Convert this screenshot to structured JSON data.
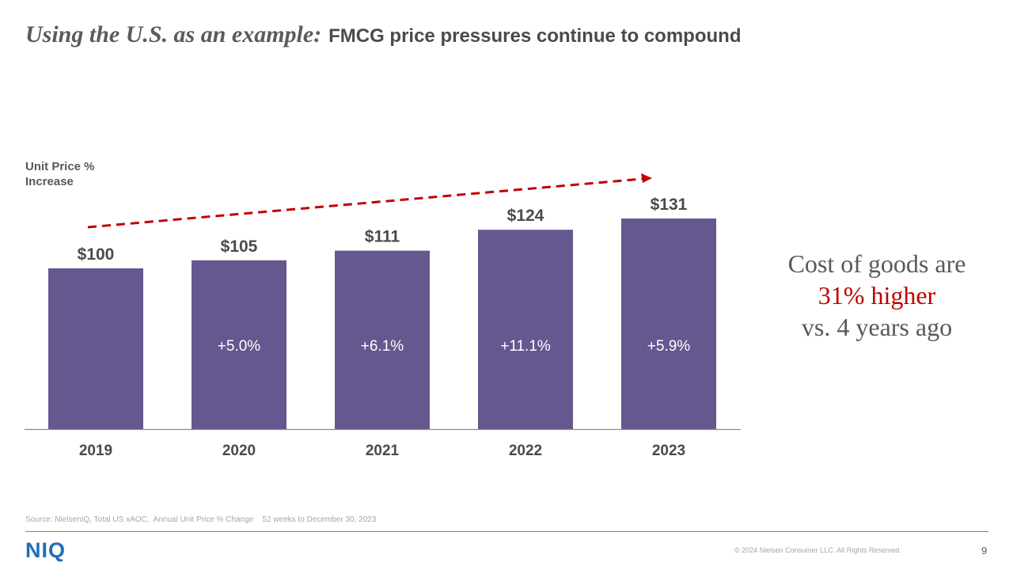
{
  "title": {
    "lead": "Using the U.S. as an example:",
    "rest": "FMCG price pressures continue to compound"
  },
  "chart_data": {
    "type": "bar",
    "ylabel": "Unit Price % Increase",
    "categories": [
      "2019",
      "2020",
      "2021",
      "2022",
      "2023"
    ],
    "values": [
      100,
      105,
      111,
      124,
      131
    ],
    "value_labels": [
      "$100",
      "$105",
      "$111",
      "$124",
      "$131"
    ],
    "pct_labels": [
      "",
      "+5.0%",
      "+6.1%",
      "+11.1%",
      "+5.9%"
    ],
    "ylim": [
      0,
      140
    ],
    "grid": false,
    "bar_color": "#65588f",
    "trend_arrow_color": "#c00000"
  },
  "callout": {
    "line1": "Cost of goods are",
    "highlight": "31% higher",
    "line3": "vs. 4 years ago"
  },
  "footer": {
    "source": "Source: NielsenIQ, Total US xAOC,  Annual Unit Price % Change    52 weeks to December 30, 2023",
    "logo": "NIQ",
    "copyright": "© 2024 Nielsen Consumer LLC. All Rights Reserved.",
    "page_number": "9"
  }
}
